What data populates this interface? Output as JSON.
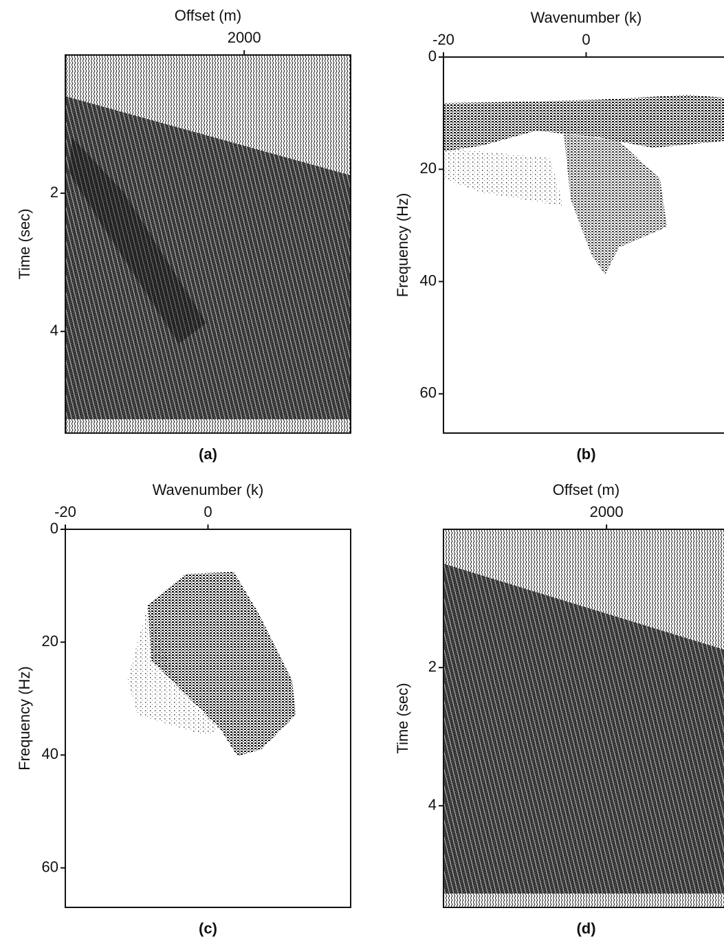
{
  "chart_data": [
    {
      "type": "image",
      "caption": "(a)",
      "xlabel": "Offset (m)",
      "ylabel": "Time (sec)",
      "xlim": [
        0,
        3190
      ],
      "xticks": [
        2000
      ],
      "ylim": [
        0,
        5.47
      ],
      "yticks": [
        2,
        4
      ]
    },
    {
      "type": "image",
      "caption": "(b)",
      "xlabel": "Wavenumber (k)",
      "ylabel": "Frequency (Hz)",
      "xlim": [
        -20,
        20
      ],
      "xticks": [
        -20,
        0
      ],
      "ylim": [
        0,
        67
      ],
      "yticks": [
        0,
        20,
        40,
        60
      ]
    },
    {
      "type": "image",
      "caption": "(c)",
      "xlabel": "Wavenumber (k)",
      "ylabel": "Frequency (Hz)",
      "xlim": [
        -20,
        20
      ],
      "xticks": [
        -20,
        0
      ],
      "ylim": [
        0,
        67
      ],
      "yticks": [
        0,
        20,
        40,
        60
      ]
    },
    {
      "type": "image",
      "caption": "(d)",
      "xlabel": "Offset (m)",
      "ylabel": "Time (sec)",
      "xlim": [
        0,
        3500
      ],
      "xticks": [
        2000
      ],
      "ylim": [
        0,
        5.47
      ],
      "yticks": [
        2,
        4
      ]
    }
  ]
}
